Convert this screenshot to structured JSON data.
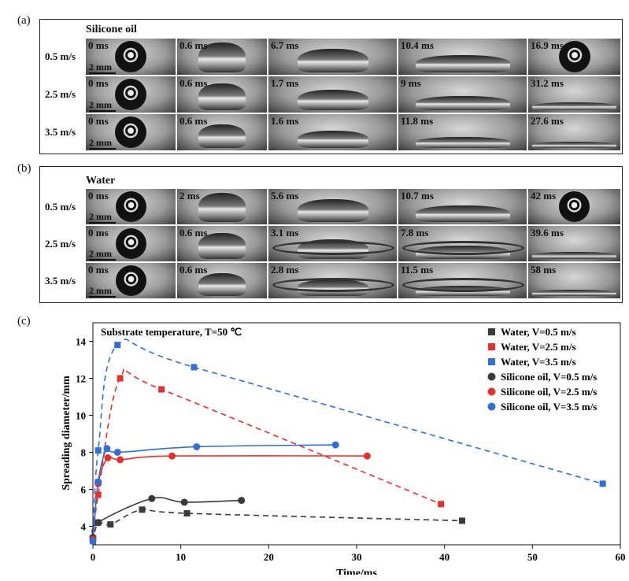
{
  "panel_a": {
    "label": "(a)",
    "title": "Silicone oil",
    "rows": [
      {
        "velocity": "0.5 m/s",
        "times": [
          "0 ms",
          "0.6 ms",
          "6.7 ms",
          "10.4 ms",
          "16.9 ms"
        ]
      },
      {
        "velocity": "2.5 m/s",
        "times": [
          "0 ms",
          "0.6 ms",
          "1.7 ms",
          "9 ms",
          "31.2 ms"
        ]
      },
      {
        "velocity": "3.5 m/s",
        "times": [
          "0 ms",
          "0.6 ms",
          "1.6 ms",
          "11.8 ms",
          "27.6 ms"
        ]
      }
    ],
    "scale_bar": "2 mm"
  },
  "panel_b": {
    "label": "(b)",
    "title": "Water",
    "rows": [
      {
        "velocity": "0.5 m/s",
        "times": [
          "0 ms",
          "2 ms",
          "5.6 ms",
          "10.7 ms",
          "42 ms"
        ]
      },
      {
        "velocity": "2.5 m/s",
        "times": [
          "0 ms",
          "0.6 ms",
          "3.1 ms",
          "7.8 ms",
          "39.6 ms"
        ]
      },
      {
        "velocity": "3.5 m/s",
        "times": [
          "0 ms",
          "0.6 ms",
          "2.8 ms",
          "11.5 ms",
          "58 ms"
        ]
      }
    ],
    "scale_bar": "2 mm"
  },
  "panel_c": {
    "label": "(c)"
  },
  "chart_data": {
    "type": "scatter",
    "annotation": "Substrate temperature, T=50 ℃",
    "xlabel": "Time/ms",
    "ylabel": "Spreading diameter/mm",
    "xlim": [
      0,
      60
    ],
    "ylim": [
      3,
      15
    ],
    "xticks": [
      "0",
      "10",
      "20",
      "30",
      "40",
      "50",
      "60"
    ],
    "yticks": [
      "4",
      "6",
      "8",
      "10",
      "12",
      "14"
    ],
    "legend_position": "top-right",
    "series": [
      {
        "name": "Water, V=0.5 m/s",
        "marker": "square",
        "color": "#3a3a3a",
        "line": "dashed",
        "x": [
          0,
          0.6,
          2,
          5.6,
          10.7,
          42
        ],
        "y": [
          3.2,
          4.2,
          4.1,
          4.9,
          4.7,
          4.3
        ]
      },
      {
        "name": "Water, V=2.5 m/s",
        "marker": "square",
        "color": "#e8302a",
        "line": "dashed",
        "x": [
          0,
          0.6,
          3.1,
          7.8,
          39.6
        ],
        "y": [
          3.2,
          5.7,
          12.0,
          11.4,
          5.2
        ]
      },
      {
        "name": "Water, V=3.5 m/s",
        "marker": "square",
        "color": "#2f6fd6",
        "line": "dashed",
        "x": [
          0,
          0.6,
          2.8,
          11.5,
          58
        ],
        "y": [
          3.2,
          8.1,
          13.8,
          12.6,
          6.3
        ]
      },
      {
        "name": "Silicone oil, V=0.5 m/s",
        "marker": "circle",
        "color": "#3a3a3a",
        "line": "solid",
        "x": [
          0,
          0.6,
          6.7,
          10.4,
          16.9
        ],
        "y": [
          3.4,
          4.2,
          5.5,
          5.3,
          5.4
        ]
      },
      {
        "name": "Silicone oil, V=2.5 m/s",
        "marker": "circle",
        "color": "#e8302a",
        "line": "solid",
        "x": [
          0,
          0.6,
          1.7,
          3.1,
          9,
          31.2
        ],
        "y": [
          3.3,
          6.3,
          7.7,
          7.6,
          7.8,
          7.8
        ]
      },
      {
        "name": "Silicone oil, V=3.5 m/s",
        "marker": "circle",
        "color": "#2f6fd6",
        "line": "solid",
        "x": [
          0,
          0.6,
          1.6,
          2.8,
          11.8,
          27.6
        ],
        "y": [
          3.2,
          6.4,
          8.2,
          8.0,
          8.3,
          8.4
        ]
      }
    ]
  }
}
